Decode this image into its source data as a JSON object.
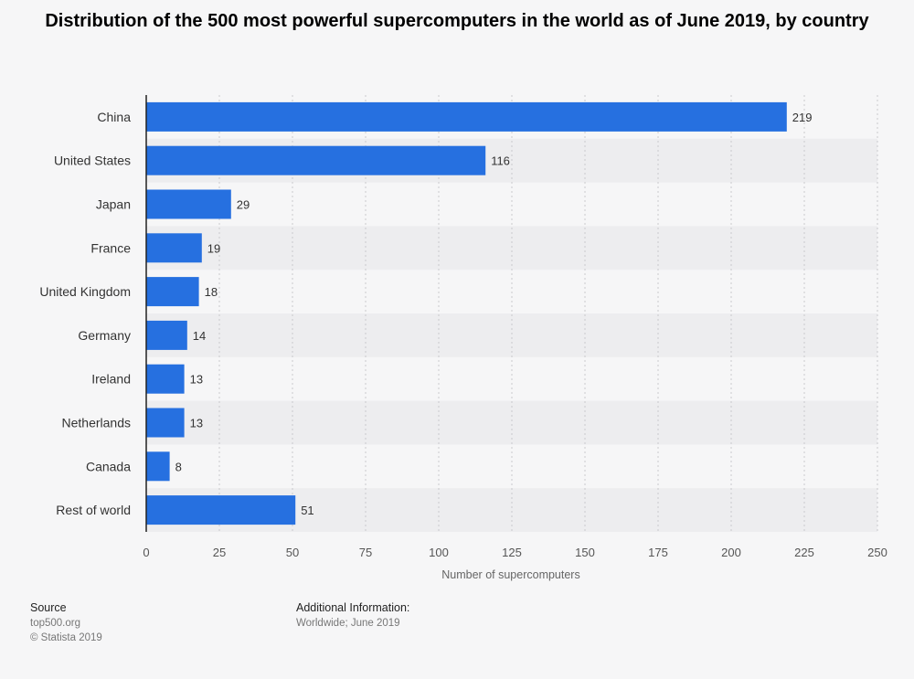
{
  "title": "Distribution of the 500 most powerful supercomputers in the world as of June 2019, by country",
  "colors": {
    "bar": "#2670e0",
    "background": "#f6f6f7",
    "band": "#ededef",
    "grid": "#c9c9cc",
    "axis": "#222222",
    "tick_text": "#555555",
    "label_text": "#333333"
  },
  "chart_data": {
    "type": "bar",
    "orientation": "horizontal",
    "categories": [
      "China",
      "United States",
      "Japan",
      "France",
      "United Kingdom",
      "Germany",
      "Ireland",
      "Netherlands",
      "Canada",
      "Rest of world"
    ],
    "values": [
      219,
      116,
      29,
      19,
      18,
      14,
      13,
      13,
      8,
      51
    ],
    "xlabel": "Number of supercomputers",
    "ylabel": "",
    "xlim": [
      0,
      250
    ],
    "xticks": [
      0,
      25,
      50,
      75,
      100,
      125,
      150,
      175,
      200,
      225,
      250
    ],
    "grid": true,
    "data_labels": true
  },
  "footer": {
    "source_heading": "Source",
    "source_lines": [
      "top500.org",
      "© Statista 2019"
    ],
    "info_heading": "Additional Information:",
    "info_lines": [
      "Worldwide; June 2019"
    ]
  }
}
